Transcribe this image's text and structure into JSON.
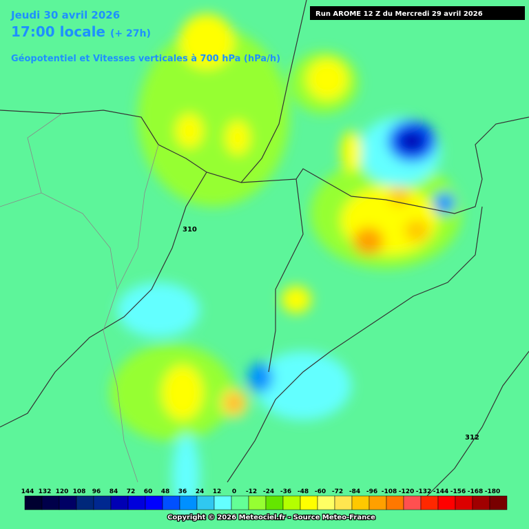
{
  "header": {
    "date": "Jeudi 30 avril 2026",
    "time": "17:00 locale",
    "lead": "(+ 27h)",
    "subtitle": "Géopotentiel et Vitesses verticales à 700 hPa (hPa/h)",
    "run": "Run AROME 12 Z du Mercredi 29 avril 2026"
  },
  "contour_labels": [
    "310",
    "312"
  ],
  "legend": {
    "labels": [
      144,
      132,
      120,
      108,
      96,
      84,
      72,
      60,
      48,
      36,
      24,
      12,
      0,
      -12,
      -24,
      -36,
      -48,
      -60,
      -72,
      -84,
      -96,
      -108,
      -120,
      -132,
      -144,
      -156,
      -168,
      -180
    ],
    "colors": [
      "#000030",
      "#00004a",
      "#000064",
      "#00287a",
      "#002890",
      "#0000b4",
      "#0000dc",
      "#0000ff",
      "#0050ff",
      "#0090ff",
      "#30c8f0",
      "#64ffff",
      "#64ff96",
      "#96ff32",
      "#64e600",
      "#b4ff00",
      "#ffff00",
      "#ffff64",
      "#ffe650",
      "#ffc800",
      "#ffa000",
      "#ff7800",
      "#ff5050",
      "#ff2800",
      "#ff0000",
      "#dc0000",
      "#a00000",
      "#780000"
    ]
  },
  "footer": "Copyright © 2026 Meteociel.fr - Source Meteo-France"
}
